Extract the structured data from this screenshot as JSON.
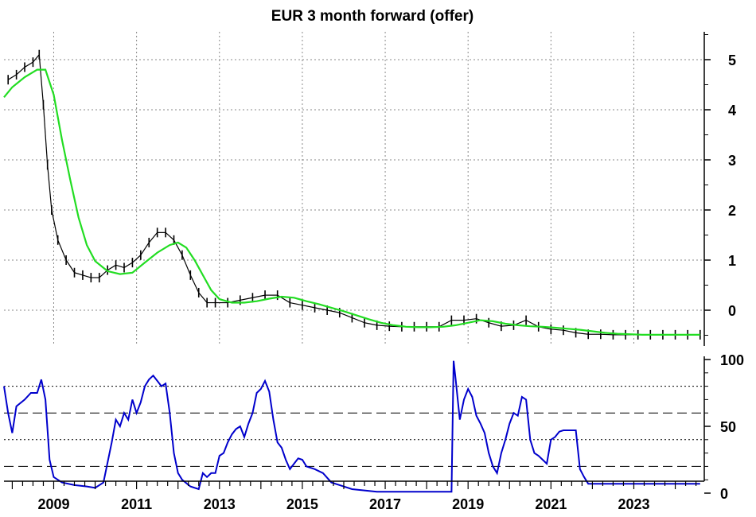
{
  "chart_data": [
    {
      "type": "line",
      "title": "EUR 3 month forward (offer)",
      "xlabel": "",
      "ylabel": "",
      "xlim": [
        2007.8,
        2024.7
      ],
      "ylim": [
        -0.5,
        5.5
      ],
      "y_ticks": [
        0,
        1,
        2,
        3,
        4,
        5
      ],
      "grid": true,
      "series": [
        {
          "name": "",
          "style": "price bars",
          "color": "#000000",
          "x": [
            2007.9,
            2008.1,
            2008.3,
            2008.5,
            2008.65,
            2008.75,
            2008.85,
            2008.95,
            2009.1,
            2009.3,
            2009.5,
            2009.7,
            2009.9,
            2010.1,
            2010.3,
            2010.5,
            2010.7,
            2010.9,
            2011.1,
            2011.3,
            2011.5,
            2011.7,
            2011.9,
            2012.1,
            2012.3,
            2012.5,
            2012.7,
            2012.9,
            2013.2,
            2013.5,
            2013.8,
            2014.1,
            2014.4,
            2014.7,
            2015.0,
            2015.3,
            2015.6,
            2015.9,
            2016.2,
            2016.5,
            2016.8,
            2017.1,
            2017.4,
            2017.7,
            2018.0,
            2018.3,
            2018.6,
            2018.9,
            2019.2,
            2019.5,
            2019.8,
            2020.1,
            2020.4,
            2020.7,
            2021.0,
            2021.3,
            2021.6,
            2021.9,
            2022.2,
            2022.5,
            2022.8,
            2023.1,
            2023.4,
            2023.7,
            2024.0,
            2024.3,
            2024.6
          ],
          "y": [
            4.6,
            4.7,
            4.85,
            4.95,
            5.1,
            4.1,
            2.9,
            2.0,
            1.4,
            1.0,
            0.75,
            0.7,
            0.65,
            0.65,
            0.8,
            0.9,
            0.85,
            0.95,
            1.1,
            1.35,
            1.55,
            1.55,
            1.4,
            1.1,
            0.7,
            0.35,
            0.15,
            0.15,
            0.15,
            0.2,
            0.25,
            0.3,
            0.3,
            0.15,
            0.1,
            0.05,
            0.0,
            -0.05,
            -0.15,
            -0.25,
            -0.3,
            -0.32,
            -0.33,
            -0.33,
            -0.33,
            -0.33,
            -0.2,
            -0.2,
            -0.17,
            -0.25,
            -0.32,
            -0.3,
            -0.2,
            -0.33,
            -0.38,
            -0.4,
            -0.45,
            -0.48,
            -0.48,
            -0.49,
            -0.49,
            -0.49,
            -0.49,
            -0.49,
            -0.49,
            -0.49,
            -0.49
          ]
        },
        {
          "name": "",
          "style": "moving average",
          "color": "#22dd22",
          "x": [
            2007.8,
            2008.0,
            2008.3,
            2008.6,
            2008.8,
            2009.0,
            2009.2,
            2009.4,
            2009.6,
            2009.8,
            2010.0,
            2010.3,
            2010.6,
            2010.9,
            2011.2,
            2011.5,
            2011.8,
            2012.0,
            2012.2,
            2012.4,
            2012.6,
            2012.8,
            2013.0,
            2013.3,
            2013.6,
            2013.9,
            2014.2,
            2014.5,
            2014.8,
            2015.1,
            2015.4,
            2015.7,
            2016.0,
            2016.3,
            2016.6,
            2016.9,
            2017.2,
            2017.5,
            2017.8,
            2018.1,
            2018.4,
            2018.7,
            2019.0,
            2019.3,
            2019.6,
            2019.9,
            2020.2,
            2020.5,
            2020.8,
            2021.1,
            2021.4,
            2021.7,
            2022.0,
            2022.3,
            2022.6,
            2022.9,
            2023.2,
            2023.6,
            2024.0,
            2024.6
          ],
          "y": [
            4.25,
            4.45,
            4.65,
            4.8,
            4.8,
            4.3,
            3.4,
            2.6,
            1.85,
            1.3,
            0.98,
            0.78,
            0.72,
            0.75,
            0.95,
            1.15,
            1.3,
            1.35,
            1.25,
            1.0,
            0.7,
            0.4,
            0.22,
            0.15,
            0.15,
            0.18,
            0.23,
            0.27,
            0.25,
            0.18,
            0.12,
            0.05,
            -0.02,
            -0.1,
            -0.18,
            -0.25,
            -0.3,
            -0.33,
            -0.34,
            -0.34,
            -0.33,
            -0.3,
            -0.25,
            -0.2,
            -0.22,
            -0.27,
            -0.3,
            -0.32,
            -0.33,
            -0.35,
            -0.37,
            -0.39,
            -0.42,
            -0.45,
            -0.47,
            -0.48,
            -0.49,
            -0.49,
            -0.49,
            -0.49
          ]
        }
      ]
    },
    {
      "type": "line",
      "title": "",
      "xlabel": "",
      "ylabel": "",
      "xlim": [
        2007.8,
        2024.7
      ],
      "ylim": [
        0,
        100
      ],
      "y_ticks": [
        0,
        50,
        100
      ],
      "x_ticks": [
        "2009",
        "2011",
        "2013",
        "2015",
        "2017",
        "2019",
        "2021",
        "2023"
      ],
      "reference_lines_dotted": [
        80,
        40
      ],
      "reference_lines_dashed": [
        60,
        20
      ],
      "series": [
        {
          "name": "",
          "color": "#0000cc",
          "x": [
            2007.8,
            2007.9,
            2008.0,
            2008.1,
            2008.3,
            2008.45,
            2008.6,
            2008.7,
            2008.8,
            2008.9,
            2009.0,
            2009.2,
            2009.5,
            2009.8,
            2010.0,
            2010.2,
            2010.4,
            2010.5,
            2010.6,
            2010.7,
            2010.8,
            2010.9,
            2011.0,
            2011.1,
            2011.2,
            2011.3,
            2011.4,
            2011.5,
            2011.6,
            2011.7,
            2011.8,
            2011.9,
            2012.0,
            2012.1,
            2012.3,
            2012.5,
            2012.6,
            2012.7,
            2012.8,
            2012.9,
            2013.0,
            2013.1,
            2013.2,
            2013.3,
            2013.4,
            2013.5,
            2013.6,
            2013.7,
            2013.8,
            2013.9,
            2014.0,
            2014.1,
            2014.2,
            2014.3,
            2014.4,
            2014.5,
            2014.6,
            2014.7,
            2014.8,
            2014.9,
            2015.0,
            2015.1,
            2015.3,
            2015.5,
            2015.7,
            2015.9,
            2016.2,
            2016.5,
            2016.8,
            2017.1,
            2017.5,
            2017.9,
            2018.3,
            2018.5,
            2018.6,
            2018.65,
            2018.7,
            2018.8,
            2018.9,
            2019.0,
            2019.1,
            2019.2,
            2019.3,
            2019.4,
            2019.5,
            2019.6,
            2019.7,
            2019.8,
            2019.9,
            2020.0,
            2020.1,
            2020.2,
            2020.3,
            2020.4,
            2020.5,
            2020.6,
            2020.7,
            2020.8,
            2020.9,
            2021.0,
            2021.1,
            2021.2,
            2021.3,
            2021.6,
            2021.7,
            2021.8,
            2021.9,
            2022.0,
            2022.3,
            2022.6,
            2023.0,
            2023.5,
            2024.0,
            2024.6
          ],
          "y": [
            80,
            60,
            45,
            65,
            70,
            75,
            75,
            85,
            70,
            25,
            12,
            8,
            6,
            5,
            4,
            8,
            38,
            55,
            50,
            60,
            55,
            70,
            60,
            68,
            80,
            85,
            88,
            84,
            80,
            82,
            60,
            30,
            15,
            10,
            5,
            3,
            15,
            12,
            15,
            15,
            28,
            30,
            38,
            44,
            48,
            50,
            42,
            52,
            60,
            75,
            78,
            84,
            76,
            55,
            38,
            34,
            25,
            18,
            22,
            26,
            25,
            20,
            18,
            15,
            8,
            6,
            3,
            2,
            1,
            1,
            1,
            1,
            1,
            1,
            1,
            99,
            85,
            55,
            70,
            78,
            72,
            58,
            52,
            45,
            30,
            20,
            15,
            30,
            40,
            52,
            60,
            58,
            72,
            70,
            40,
            30,
            28,
            25,
            22,
            40,
            42,
            46,
            47,
            47,
            18,
            12,
            7,
            7,
            7,
            7,
            7,
            7,
            7,
            7
          ]
        }
      ]
    }
  ]
}
